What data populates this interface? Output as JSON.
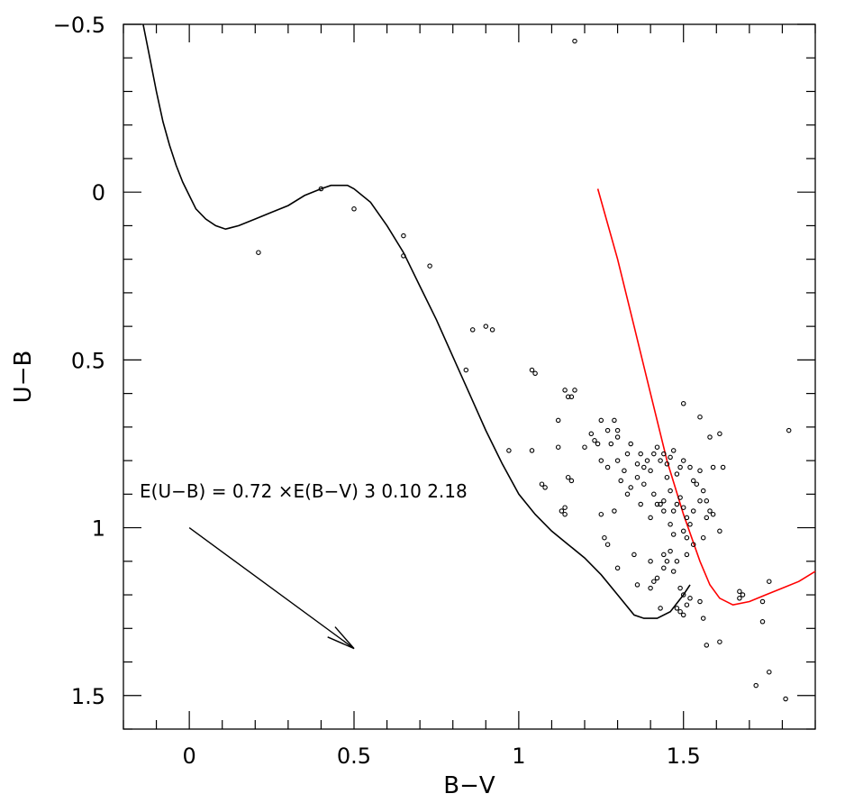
{
  "chart_data": {
    "type": "scatter",
    "xlabel": "B−V",
    "ylabel": "U−B",
    "xlim": [
      -0.2,
      1.9
    ],
    "ylim": [
      -0.5,
      1.6
    ],
    "y_inverted": true,
    "x_ticks": [
      {
        "value": 0,
        "label": "0"
      },
      {
        "value": 0.5,
        "label": "0.5"
      },
      {
        "value": 1,
        "label": "1"
      },
      {
        "value": 1.5,
        "label": "1.5"
      }
    ],
    "y_ticks": [
      {
        "value": -0.5,
        "label": "−0.5"
      },
      {
        "value": 0,
        "label": "0"
      },
      {
        "value": 0.5,
        "label": "0.5"
      },
      {
        "value": 1,
        "label": "1"
      },
      {
        "value": 1.5,
        "label": "1.5"
      }
    ],
    "annotation": "E(U−B) = 0.72 ×E(B−V) 3  0.10   2.18",
    "reddening_vector": {
      "x0": 0.0,
      "y0": 1.0,
      "x1": 0.5,
      "y1": 1.36
    },
    "colors": {
      "black_curve": "#000000",
      "red_curve": "#ff0000",
      "points": "#000000"
    },
    "series": [
      {
        "kind": "line",
        "color": "#000000",
        "points": [
          [
            -0.14,
            -0.5
          ],
          [
            -0.12,
            -0.4
          ],
          [
            -0.1,
            -0.3
          ],
          [
            -0.08,
            -0.21
          ],
          [
            -0.06,
            -0.14
          ],
          [
            -0.04,
            -0.08
          ],
          [
            -0.02,
            -0.03
          ],
          [
            0.0,
            0.01
          ],
          [
            0.02,
            0.05
          ],
          [
            0.05,
            0.08
          ],
          [
            0.08,
            0.1
          ],
          [
            0.11,
            0.11
          ],
          [
            0.15,
            0.1
          ],
          [
            0.2,
            0.08
          ],
          [
            0.25,
            0.06
          ],
          [
            0.3,
            0.04
          ],
          [
            0.35,
            0.01
          ],
          [
            0.4,
            -0.01
          ],
          [
            0.43,
            -0.02
          ],
          [
            0.48,
            -0.02
          ],
          [
            0.5,
            -0.01
          ],
          [
            0.55,
            0.03
          ],
          [
            0.6,
            0.1
          ],
          [
            0.65,
            0.18
          ],
          [
            0.7,
            0.28
          ],
          [
            0.75,
            0.38
          ],
          [
            0.8,
            0.49
          ],
          [
            0.85,
            0.6
          ],
          [
            0.9,
            0.71
          ],
          [
            0.95,
            0.81
          ],
          [
            1.0,
            0.9
          ],
          [
            1.05,
            0.96
          ],
          [
            1.1,
            1.01
          ],
          [
            1.15,
            1.05
          ],
          [
            1.2,
            1.09
          ],
          [
            1.25,
            1.14
          ],
          [
            1.3,
            1.2
          ],
          [
            1.35,
            1.26
          ],
          [
            1.38,
            1.27
          ],
          [
            1.42,
            1.27
          ],
          [
            1.46,
            1.25
          ],
          [
            1.5,
            1.2
          ],
          [
            1.52,
            1.17
          ]
        ]
      },
      {
        "kind": "line",
        "color": "#ff0000",
        "points": [
          [
            1.24,
            -0.01
          ],
          [
            1.3,
            0.2
          ],
          [
            1.35,
            0.4
          ],
          [
            1.4,
            0.6
          ],
          [
            1.45,
            0.8
          ],
          [
            1.5,
            0.96
          ],
          [
            1.55,
            1.1
          ],
          [
            1.58,
            1.17
          ],
          [
            1.61,
            1.21
          ],
          [
            1.65,
            1.23
          ],
          [
            1.7,
            1.22
          ],
          [
            1.75,
            1.2
          ],
          [
            1.8,
            1.18
          ],
          [
            1.85,
            1.16
          ],
          [
            1.9,
            1.13
          ]
        ]
      },
      {
        "kind": "scatter",
        "color": "#000000",
        "points": [
          [
            1.17,
            -0.45
          ],
          [
            0.4,
            -0.01
          ],
          [
            0.5,
            0.05
          ],
          [
            0.21,
            0.18
          ],
          [
            0.65,
            0.13
          ],
          [
            0.65,
            0.19
          ],
          [
            0.73,
            0.22
          ],
          [
            0.86,
            0.41
          ],
          [
            0.9,
            0.4
          ],
          [
            0.92,
            0.41
          ],
          [
            0.84,
            0.53
          ],
          [
            1.04,
            0.53
          ],
          [
            1.05,
            0.54
          ],
          [
            1.14,
            0.59
          ],
          [
            1.17,
            0.59
          ],
          [
            1.15,
            0.61
          ],
          [
            1.16,
            0.61
          ],
          [
            1.5,
            0.63
          ],
          [
            1.55,
            0.67
          ],
          [
            1.12,
            0.68
          ],
          [
            1.25,
            0.68
          ],
          [
            1.29,
            0.68
          ],
          [
            1.61,
            0.72
          ],
          [
            1.82,
            0.71
          ],
          [
            1.58,
            0.73
          ],
          [
            0.97,
            0.77
          ],
          [
            1.04,
            0.77
          ],
          [
            1.12,
            0.76
          ],
          [
            1.2,
            0.76
          ],
          [
            1.22,
            0.72
          ],
          [
            1.23,
            0.74
          ],
          [
            1.24,
            0.75
          ],
          [
            1.27,
            0.71
          ],
          [
            1.28,
            0.75
          ],
          [
            1.3,
            0.73
          ],
          [
            1.3,
            0.71
          ],
          [
            1.33,
            0.78
          ],
          [
            1.34,
            0.75
          ],
          [
            1.36,
            0.81
          ],
          [
            1.37,
            0.78
          ],
          [
            1.38,
            0.82
          ],
          [
            1.39,
            0.8
          ],
          [
            1.41,
            0.78
          ],
          [
            1.42,
            0.76
          ],
          [
            1.43,
            0.8
          ],
          [
            1.44,
            0.78
          ],
          [
            1.45,
            0.81
          ],
          [
            1.46,
            0.79
          ],
          [
            1.47,
            0.77
          ],
          [
            1.48,
            0.84
          ],
          [
            1.49,
            0.82
          ],
          [
            1.5,
            0.8
          ],
          [
            1.52,
            0.82
          ],
          [
            1.53,
            0.86
          ],
          [
            1.54,
            0.87
          ],
          [
            1.55,
            0.83
          ],
          [
            1.56,
            0.89
          ],
          [
            1.57,
            0.92
          ],
          [
            1.58,
            0.95
          ],
          [
            1.59,
            0.82
          ],
          [
            1.62,
            0.82
          ],
          [
            1.25,
            0.8
          ],
          [
            1.27,
            0.82
          ],
          [
            1.3,
            0.8
          ],
          [
            1.31,
            0.86
          ],
          [
            1.32,
            0.83
          ],
          [
            1.34,
            0.88
          ],
          [
            1.36,
            0.85
          ],
          [
            1.38,
            0.87
          ],
          [
            1.4,
            0.83
          ],
          [
            1.41,
            0.9
          ],
          [
            1.43,
            0.93
          ],
          [
            1.44,
            0.92
          ],
          [
            1.45,
            0.85
          ],
          [
            1.46,
            0.89
          ],
          [
            1.47,
            0.95
          ],
          [
            1.48,
            0.93
          ],
          [
            1.49,
            0.91
          ],
          [
            1.5,
            0.94
          ],
          [
            1.51,
            0.97
          ],
          [
            1.52,
            0.99
          ],
          [
            1.53,
            0.95
          ],
          [
            1.55,
            0.92
          ],
          [
            1.57,
            0.97
          ],
          [
            1.59,
            0.96
          ],
          [
            1.15,
            0.85
          ],
          [
            1.16,
            0.86
          ],
          [
            1.07,
            0.87
          ],
          [
            1.08,
            0.88
          ],
          [
            1.13,
            0.95
          ],
          [
            1.14,
            0.96
          ],
          [
            1.14,
            0.94
          ],
          [
            1.25,
            0.96
          ],
          [
            1.29,
            0.95
          ],
          [
            1.33,
            0.9
          ],
          [
            1.37,
            0.93
          ],
          [
            1.4,
            0.97
          ],
          [
            1.42,
            0.93
          ],
          [
            1.44,
            0.95
          ],
          [
            1.46,
            0.99
          ],
          [
            1.47,
            1.02
          ],
          [
            1.5,
            1.01
          ],
          [
            1.51,
            1.03
          ],
          [
            1.53,
            1.05
          ],
          [
            1.56,
            1.03
          ],
          [
            1.61,
            1.01
          ],
          [
            1.26,
            1.03
          ],
          [
            1.27,
            1.05
          ],
          [
            1.35,
            1.08
          ],
          [
            1.4,
            1.1
          ],
          [
            1.44,
            1.08
          ],
          [
            1.46,
            1.07
          ],
          [
            1.48,
            1.1
          ],
          [
            1.51,
            1.08
          ],
          [
            1.45,
            1.1
          ],
          [
            1.3,
            1.12
          ],
          [
            1.42,
            1.15
          ],
          [
            1.44,
            1.12
          ],
          [
            1.47,
            1.13
          ],
          [
            1.49,
            1.18
          ],
          [
            1.36,
            1.17
          ],
          [
            1.4,
            1.18
          ],
          [
            1.41,
            1.16
          ],
          [
            1.5,
            1.2
          ],
          [
            1.52,
            1.21
          ],
          [
            1.43,
            1.24
          ],
          [
            1.48,
            1.24
          ],
          [
            1.49,
            1.25
          ],
          [
            1.5,
            1.26
          ],
          [
            1.51,
            1.23
          ],
          [
            1.55,
            1.22
          ],
          [
            1.56,
            1.27
          ],
          [
            1.57,
            1.35
          ],
          [
            1.61,
            1.34
          ],
          [
            1.67,
            1.19
          ],
          [
            1.68,
            1.2
          ],
          [
            1.67,
            1.21
          ],
          [
            1.76,
            1.16
          ],
          [
            1.74,
            1.22
          ],
          [
            1.74,
            1.28
          ],
          [
            1.76,
            1.43
          ],
          [
            1.72,
            1.47
          ],
          [
            1.81,
            1.51
          ]
        ]
      }
    ]
  }
}
